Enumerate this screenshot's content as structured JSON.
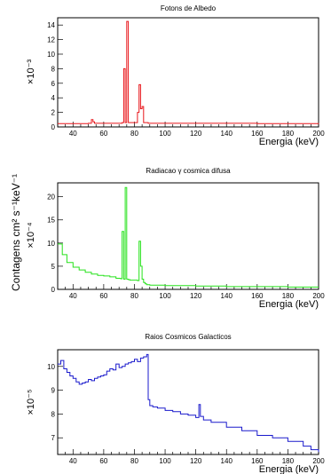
{
  "figure": {
    "shared_ylabel": "Contagens  cm² s⁻¹keV⁻¹"
  },
  "chart_data": [
    {
      "type": "line",
      "title": "Fotons de Albedo",
      "xlabel": "Energia (keV)",
      "ylabel": "Contagens  cm² s⁻¹keV⁻¹",
      "multiplier": "×10⁻³",
      "color": "#e8161b",
      "xlim": [
        30,
        200
      ],
      "ylim": [
        0,
        15
      ],
      "x_ticks": [
        40,
        60,
        80,
        100,
        120,
        140,
        160,
        180,
        200
      ],
      "y_ticks": [
        0,
        2,
        4,
        6,
        8,
        10,
        12,
        14
      ],
      "series": [
        {
          "x": [
            30,
            50,
            52,
            53,
            54,
            72,
            73,
            74,
            75,
            76,
            77,
            82,
            83,
            84,
            85,
            86,
            87,
            88,
            89,
            120,
            160,
            200
          ],
          "values": [
            0.45,
            0.5,
            1.0,
            0.7,
            0.5,
            0.6,
            8.0,
            0.6,
            14.5,
            0.6,
            0.6,
            2.0,
            5.8,
            2.5,
            2.8,
            0.6,
            0.6,
            0.6,
            0.5,
            0.5,
            0.45,
            0.4
          ]
        }
      ]
    },
    {
      "type": "line",
      "title": "Radiacao γ cosmica difusa",
      "xlabel": "Energia (keV)",
      "ylabel": "Contagens  cm² s⁻¹keV⁻¹",
      "multiplier": "×10⁻⁴",
      "color": "#26e21b",
      "xlim": [
        30,
        200
      ],
      "ylim": [
        0,
        23
      ],
      "x_ticks": [
        40,
        60,
        80,
        100,
        120,
        140,
        160,
        180,
        200
      ],
      "y_ticks": [
        0,
        5,
        10,
        15,
        20
      ],
      "series": [
        {
          "x": [
            30,
            33,
            36,
            40,
            44,
            48,
            52,
            56,
            60,
            64,
            68,
            71,
            72,
            73,
            74,
            75,
            76,
            77,
            80,
            82,
            83,
            84,
            85,
            86,
            87,
            88,
            90,
            100,
            120,
            140,
            160,
            180,
            200
          ],
          "values": [
            9.8,
            7.5,
            5.8,
            4.8,
            4.2,
            3.7,
            3.3,
            3.0,
            2.9,
            2.7,
            2.4,
            2.3,
            12.5,
            2.2,
            22.0,
            2.2,
            2.1,
            2.0,
            2.0,
            1.9,
            10.4,
            5.0,
            2.2,
            1.5,
            1.2,
            1.0,
            0.9,
            0.8,
            0.7,
            0.6,
            0.6,
            0.5,
            0.5
          ]
        }
      ]
    },
    {
      "type": "line",
      "title": "Raios Cosmicos Galacticos",
      "xlabel": "Energia (keV)",
      "ylabel": "Contagens  cm² s⁻¹keV⁻¹",
      "multiplier": "×10⁻⁵",
      "color": "#1a1acc",
      "xlim": [
        30,
        200
      ],
      "ylim": [
        6.3,
        10.7
      ],
      "x_ticks": [
        40,
        60,
        80,
        100,
        120,
        140,
        160,
        180,
        200
      ],
      "y_ticks": [
        7,
        8,
        9,
        10
      ],
      "series": [
        {
          "x": [
            30,
            32,
            34,
            36,
            38,
            40,
            42,
            44,
            46,
            48,
            50,
            52,
            54,
            56,
            58,
            60,
            62,
            64,
            66,
            68,
            70,
            72,
            74,
            76,
            78,
            80,
            82,
            84,
            86,
            88,
            89,
            90,
            92,
            95,
            100,
            105,
            110,
            115,
            120,
            122,
            123,
            125,
            130,
            140,
            150,
            160,
            170,
            180,
            190,
            195,
            200
          ],
          "values": [
            10.1,
            10.25,
            9.9,
            9.75,
            9.6,
            9.5,
            9.35,
            9.25,
            9.3,
            9.35,
            9.45,
            9.4,
            9.5,
            9.55,
            9.6,
            9.65,
            9.8,
            9.9,
            9.85,
            10.1,
            9.95,
            10.0,
            10.1,
            10.15,
            10.2,
            10.3,
            10.2,
            10.35,
            10.4,
            10.5,
            8.6,
            8.35,
            8.3,
            8.25,
            8.15,
            8.1,
            8.0,
            7.95,
            7.85,
            8.4,
            7.9,
            7.75,
            7.65,
            7.45,
            7.3,
            7.1,
            7.0,
            6.85,
            6.65,
            6.5,
            6.4
          ]
        }
      ]
    }
  ]
}
